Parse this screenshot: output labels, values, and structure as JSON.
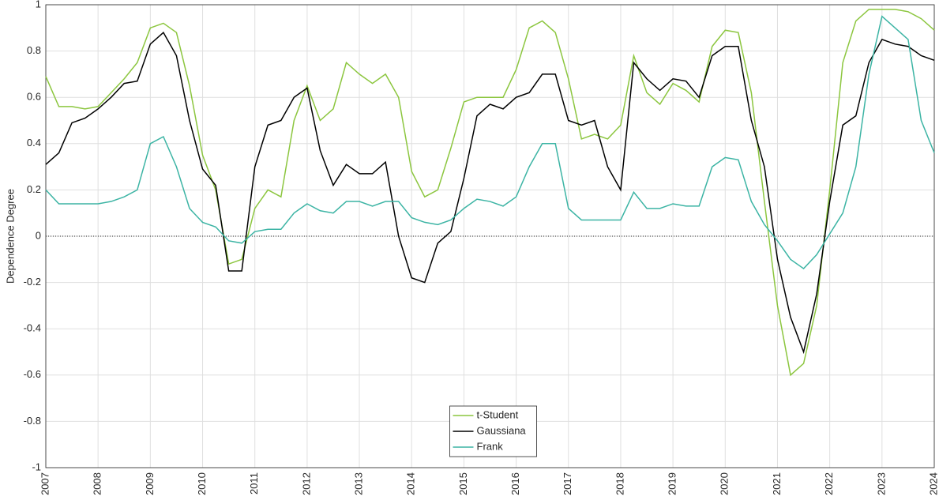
{
  "chart_data": {
    "type": "line",
    "y_label": "Dependence Degree",
    "x": [
      2007,
      2007.25,
      2007.5,
      2007.75,
      2008,
      2008.25,
      2008.5,
      2008.75,
      2009,
      2009.25,
      2009.5,
      2009.75,
      2010,
      2010.25,
      2010.5,
      2010.75,
      2011,
      2011.25,
      2011.5,
      2011.75,
      2012,
      2012.25,
      2012.5,
      2012.75,
      2013,
      2013.25,
      2013.5,
      2013.75,
      2014,
      2014.25,
      2014.5,
      2014.75,
      2015,
      2015.25,
      2015.5,
      2015.75,
      2016,
      2016.25,
      2016.5,
      2016.75,
      2017,
      2017.25,
      2017.5,
      2017.75,
      2018,
      2018.25,
      2018.5,
      2018.75,
      2019,
      2019.25,
      2019.5,
      2019.75,
      2020,
      2020.25,
      2020.5,
      2020.75,
      2021,
      2021.25,
      2021.5,
      2021.75,
      2022,
      2022.25,
      2022.5,
      2022.75,
      2023,
      2023.25,
      2023.5,
      2023.75,
      2024
    ],
    "series": [
      {
        "name": "t-Student",
        "color": "#8cc63f",
        "values": [
          0.69,
          0.56,
          0.56,
          0.55,
          0.56,
          0.62,
          0.68,
          0.75,
          0.9,
          0.92,
          0.88,
          0.65,
          0.35,
          0.2,
          -0.12,
          -0.1,
          0.12,
          0.2,
          0.17,
          0.5,
          0.65,
          0.5,
          0.55,
          0.75,
          0.7,
          0.66,
          0.7,
          0.6,
          0.28,
          0.17,
          0.2,
          0.38,
          0.58,
          0.6,
          0.6,
          0.6,
          0.72,
          0.9,
          0.93,
          0.88,
          0.68,
          0.42,
          0.44,
          0.42,
          0.48,
          0.78,
          0.62,
          0.57,
          0.66,
          0.63,
          0.58,
          0.82,
          0.89,
          0.88,
          0.62,
          0.15,
          -0.3,
          -0.6,
          -0.55,
          -0.3,
          0.2,
          0.75,
          0.93,
          0.98,
          0.98,
          0.98,
          0.97,
          0.94,
          0.89
        ]
      },
      {
        "name": "Gaussiana",
        "color": "#000000",
        "values": [
          0.31,
          0.36,
          0.49,
          0.51,
          0.55,
          0.6,
          0.66,
          0.67,
          0.83,
          0.88,
          0.78,
          0.5,
          0.29,
          0.22,
          -0.15,
          -0.15,
          0.3,
          0.48,
          0.5,
          0.6,
          0.64,
          0.37,
          0.22,
          0.31,
          0.27,
          0.27,
          0.32,
          0,
          -0.18,
          -0.2,
          -0.03,
          0.02,
          0.25,
          0.52,
          0.57,
          0.55,
          0.6,
          0.62,
          0.7,
          0.7,
          0.5,
          0.48,
          0.5,
          0.3,
          0.2,
          0.75,
          0.68,
          0.63,
          0.68,
          0.67,
          0.6,
          0.78,
          0.82,
          0.82,
          0.5,
          0.3,
          -0.1,
          -0.35,
          -0.5,
          -0.25,
          0.15,
          0.48,
          0.52,
          0.75,
          0.85,
          0.83,
          0.82,
          0.78,
          0.76
        ]
      },
      {
        "name": "Frank",
        "color": "#3cb4a4",
        "values": [
          0.2,
          0.14,
          0.14,
          0.14,
          0.14,
          0.15,
          0.17,
          0.2,
          0.4,
          0.43,
          0.3,
          0.12,
          0.06,
          0.04,
          -0.02,
          -0.03,
          0.02,
          0.03,
          0.03,
          0.1,
          0.14,
          0.11,
          0.1,
          0.15,
          0.15,
          0.13,
          0.15,
          0.15,
          0.08,
          0.06,
          0.05,
          0.07,
          0.12,
          0.16,
          0.15,
          0.13,
          0.17,
          0.3,
          0.4,
          0.4,
          0.12,
          0.07,
          0.07,
          0.07,
          0.07,
          0.19,
          0.12,
          0.12,
          0.14,
          0.13,
          0.13,
          0.3,
          0.34,
          0.33,
          0.15,
          0.05,
          -0.02,
          -0.1,
          -0.14,
          -0.08,
          0.01,
          0.1,
          0.3,
          0.7,
          0.95,
          0.9,
          0.85,
          0.5,
          0.36
        ]
      }
    ],
    "xlim": [
      2007,
      2024
    ],
    "xticks": [
      2007,
      2008,
      2009,
      2010,
      2011,
      2012,
      2013,
      2014,
      2015,
      2016,
      2017,
      2018,
      2019,
      2020,
      2021,
      2022,
      2023,
      2024
    ],
    "ylim": [
      -1,
      1
    ],
    "yticks": [
      -1,
      -0.8,
      -0.6,
      -0.4,
      -0.2,
      0,
      0.2,
      0.4,
      0.6,
      0.8,
      1
    ],
    "grid": true,
    "legend": "bottom"
  }
}
